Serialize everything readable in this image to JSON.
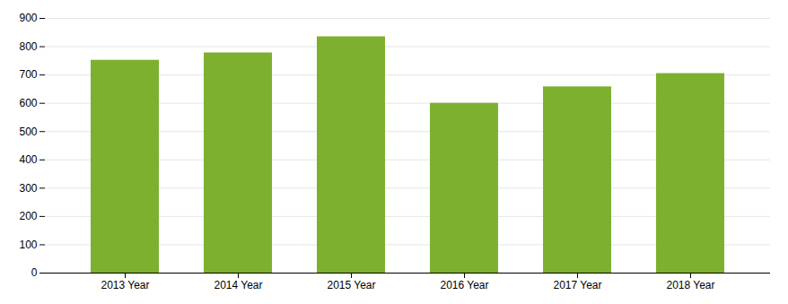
{
  "chart_data": {
    "type": "bar",
    "categories": [
      "2013 Year",
      "2014 Year",
      "2015 Year",
      "2016 Year",
      "2017 Year",
      "2018 Year"
    ],
    "values": [
      752,
      778,
      835,
      600,
      658,
      705
    ],
    "color": "#7EB030",
    "ylim": [
      0,
      900
    ],
    "yticks": [
      0,
      100,
      200,
      300,
      400,
      500,
      600,
      700,
      800,
      900
    ],
    "grid": true
  }
}
